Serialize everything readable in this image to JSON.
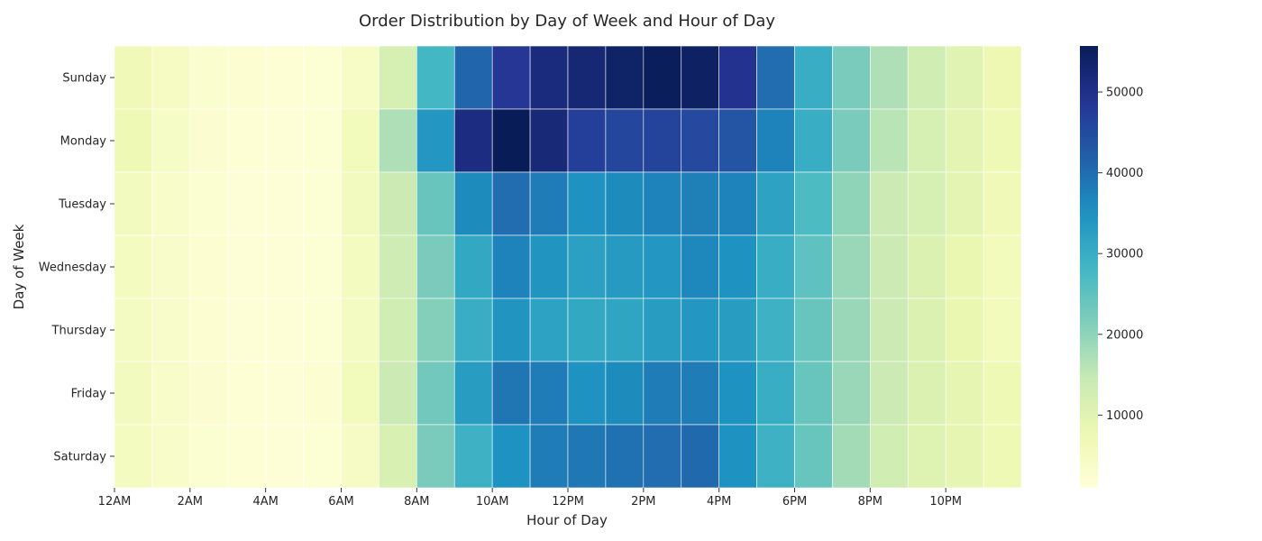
{
  "chart_data": {
    "type": "heatmap",
    "title": "Order Distribution by Day of Week and Hour of Day",
    "xlabel": "Hour of Day",
    "ylabel": "Day of Week",
    "rows": [
      "Sunday",
      "Monday",
      "Tuesday",
      "Wednesday",
      "Thursday",
      "Friday",
      "Saturday"
    ],
    "x_tick_labels": [
      "12AM",
      "2AM",
      "4AM",
      "6AM",
      "8AM",
      "10AM",
      "12PM",
      "2PM",
      "4PM",
      "6PM",
      "8PM",
      "10PM"
    ],
    "x_tick_every": 2,
    "hours": 24,
    "colormap": "YlGnBu",
    "value_range": [
      1000,
      55700
    ],
    "colorbar_ticks": [
      10000,
      20000,
      30000,
      40000,
      50000
    ],
    "values": [
      [
        6800,
        4600,
        3000,
        2200,
        1800,
        2000,
        4000,
        12000,
        28000,
        41000,
        48500,
        51500,
        52500,
        54000,
        55500,
        54500,
        49500,
        40000,
        30000,
        22000,
        17000,
        13000,
        10000,
        7500
      ],
      [
        7000,
        4400,
        2600,
        1800,
        1500,
        2100,
        6000,
        17000,
        34000,
        51000,
        55700,
        52000,
        47000,
        46000,
        46500,
        45500,
        43500,
        37000,
        30000,
        22000,
        16000,
        12000,
        9500,
        7000
      ],
      [
        5500,
        3700,
        2400,
        1700,
        1500,
        2000,
        5500,
        14000,
        24000,
        36000,
        40000,
        38000,
        35000,
        36000,
        37000,
        37500,
        37000,
        32000,
        27000,
        20000,
        14000,
        12000,
        9500,
        6500
      ],
      [
        5200,
        3600,
        2300,
        1700,
        1500,
        2000,
        5200,
        13500,
        22000,
        31000,
        37000,
        34500,
        32500,
        33500,
        34000,
        36500,
        35000,
        30000,
        25000,
        19000,
        14000,
        11000,
        8500,
        6000
      ],
      [
        5000,
        3500,
        2300,
        1700,
        1500,
        2000,
        5000,
        13000,
        21000,
        30000,
        34500,
        32000,
        31000,
        31500,
        33000,
        34000,
        33000,
        29000,
        24000,
        19000,
        14000,
        11000,
        8500,
        6000
      ],
      [
        5500,
        3800,
        2500,
        1900,
        1700,
        2300,
        6000,
        14000,
        23000,
        33000,
        39000,
        38000,
        35000,
        36000,
        38000,
        38000,
        35000,
        30000,
        24000,
        19000,
        14000,
        11000,
        9000,
        7000
      ],
      [
        5300,
        3700,
        2400,
        1800,
        1600,
        2100,
        4500,
        11500,
        22000,
        29000,
        35000,
        38000,
        38500,
        39500,
        40000,
        40500,
        35000,
        29000,
        24000,
        18000,
        13000,
        10500,
        9000,
        7000
      ]
    ]
  }
}
